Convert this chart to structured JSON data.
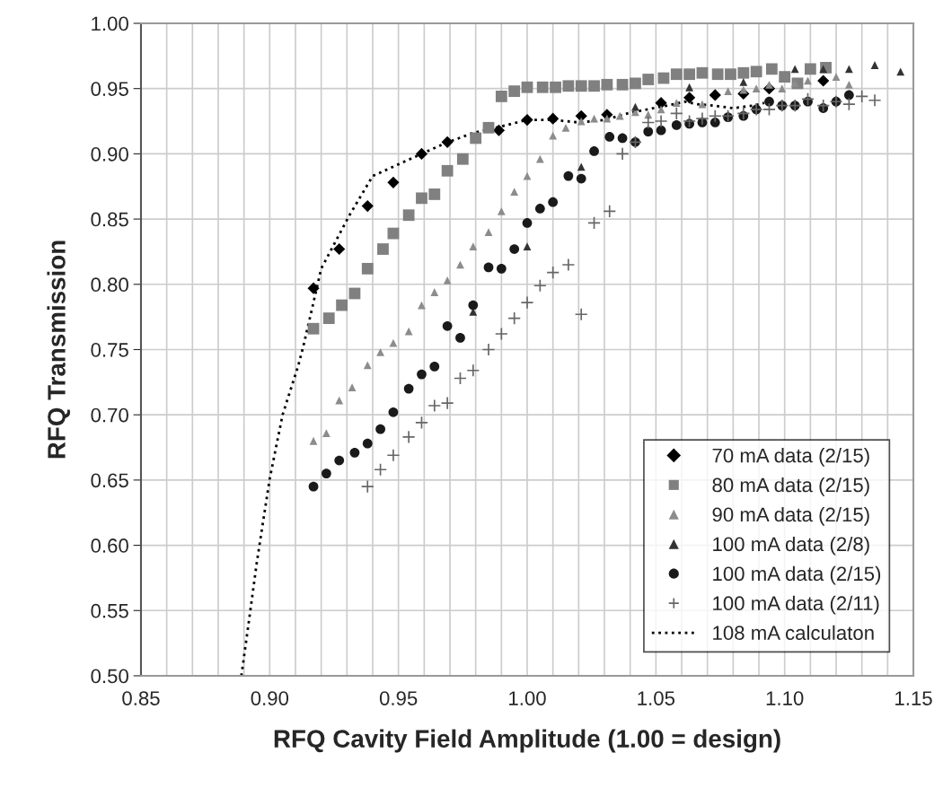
{
  "chart_data": {
    "type": "scatter",
    "xlabel": "RFQ Cavity Field Amplitude (1.00 = design)",
    "ylabel": "RFQ Transmission",
    "xlim": [
      0.85,
      1.15
    ],
    "ylim": [
      0.5,
      1.0
    ],
    "xticks": [
      {
        "value": 0.85,
        "label": "0.85"
      },
      {
        "value": 0.86,
        "label": null
      },
      {
        "value": 0.87,
        "label": null
      },
      {
        "value": 0.88,
        "label": null
      },
      {
        "value": 0.89,
        "label": null
      },
      {
        "value": 0.9,
        "label": "0.90"
      },
      {
        "value": 0.91,
        "label": null
      },
      {
        "value": 0.92,
        "label": null
      },
      {
        "value": 0.93,
        "label": null
      },
      {
        "value": 0.94,
        "label": null
      },
      {
        "value": 0.95,
        "label": "0.95"
      },
      {
        "value": 0.96,
        "label": null
      },
      {
        "value": 0.97,
        "label": null
      },
      {
        "value": 0.98,
        "label": null
      },
      {
        "value": 0.99,
        "label": null
      },
      {
        "value": 1.0,
        "label": "1.00"
      },
      {
        "value": 1.01,
        "label": null
      },
      {
        "value": 1.02,
        "label": null
      },
      {
        "value": 1.03,
        "label": null
      },
      {
        "value": 1.04,
        "label": null
      },
      {
        "value": 1.05,
        "label": "1.05"
      },
      {
        "value": 1.06,
        "label": null
      },
      {
        "value": 1.07,
        "label": null
      },
      {
        "value": 1.08,
        "label": null
      },
      {
        "value": 1.09,
        "label": null
      },
      {
        "value": 1.1,
        "label": "1.10"
      },
      {
        "value": 1.11,
        "label": null
      },
      {
        "value": 1.12,
        "label": null
      },
      {
        "value": 1.13,
        "label": null
      },
      {
        "value": 1.14,
        "label": null
      },
      {
        "value": 1.15,
        "label": "1.15"
      }
    ],
    "yticks": [
      {
        "value": 0.5,
        "label": "0.50"
      },
      {
        "value": 0.55,
        "label": "0.55"
      },
      {
        "value": 0.6,
        "label": "0.60"
      },
      {
        "value": 0.65,
        "label": "0.65"
      },
      {
        "value": 0.7,
        "label": "0.70"
      },
      {
        "value": 0.75,
        "label": "0.75"
      },
      {
        "value": 0.8,
        "label": "0.80"
      },
      {
        "value": 0.85,
        "label": "0.85"
      },
      {
        "value": 0.9,
        "label": "0.90"
      },
      {
        "value": 0.95,
        "label": "0.95"
      },
      {
        "value": 1.0,
        "label": "1.00"
      }
    ],
    "grid": true,
    "legend": "bottom right",
    "series": [
      {
        "name": "70 mA data (2/15)",
        "type": "scatter",
        "marker": "diamond",
        "color": "#000000",
        "x": [
          0.917,
          0.927,
          0.938,
          0.948,
          0.959,
          0.969,
          0.989,
          1.0,
          1.01,
          1.021,
          1.031,
          1.042,
          1.052,
          1.063,
          1.073,
          1.084,
          1.094,
          1.115
        ],
        "values": [
          0.797,
          0.827,
          0.86,
          0.878,
          0.9,
          0.909,
          0.918,
          0.926,
          0.927,
          0.929,
          0.93,
          null,
          0.939,
          0.943,
          0.945,
          0.946,
          0.95,
          0.956
        ]
      },
      {
        "name": "80 mA data (2/15)",
        "type": "scatter",
        "marker": "square",
        "color": "#808080",
        "x": [
          0.917,
          0.923,
          0.928,
          0.933,
          0.938,
          0.944,
          0.948,
          0.954,
          0.959,
          0.964,
          0.969,
          0.975,
          0.98,
          0.985,
          0.99,
          0.995,
          1.0,
          1.006,
          1.011,
          1.016,
          1.021,
          1.026,
          1.031,
          1.037,
          1.042,
          1.047,
          1.053,
          1.058,
          1.063,
          1.068,
          1.074,
          1.079,
          1.084,
          1.089,
          1.095,
          1.1,
          1.105,
          1.11,
          1.116
        ],
        "values": [
          0.766,
          0.774,
          0.784,
          0.793,
          0.812,
          0.827,
          0.839,
          0.853,
          0.866,
          0.869,
          0.887,
          0.896,
          0.912,
          0.92,
          0.944,
          0.948,
          0.951,
          0.951,
          0.951,
          0.952,
          0.952,
          0.952,
          0.953,
          0.953,
          0.954,
          0.957,
          0.958,
          0.961,
          0.961,
          0.962,
          0.961,
          0.961,
          0.962,
          0.963,
          0.965,
          0.959,
          0.954,
          0.965,
          0.966
        ]
      },
      {
        "name": "90 mA data (2/15)",
        "type": "scatter",
        "marker": "triangle",
        "color": "#8c8c8c",
        "x": [
          0.917,
          0.922,
          0.927,
          0.932,
          0.938,
          0.943,
          0.948,
          0.954,
          0.959,
          0.964,
          0.969,
          0.974,
          0.979,
          0.985,
          0.99,
          0.995,
          1.0,
          1.005,
          1.01,
          1.015,
          1.021,
          1.026,
          1.031,
          1.036,
          1.042,
          1.047,
          1.052,
          1.058,
          1.068,
          1.078,
          1.084,
          1.089,
          1.094,
          1.099,
          1.104,
          1.109,
          1.12,
          1.125
        ],
        "values": [
          0.68,
          0.686,
          0.711,
          0.721,
          0.738,
          0.748,
          0.755,
          0.764,
          0.784,
          0.794,
          0.803,
          0.815,
          0.829,
          0.84,
          0.856,
          0.871,
          0.883,
          0.896,
          0.914,
          0.92,
          0.925,
          0.927,
          0.927,
          0.929,
          0.932,
          0.93,
          0.934,
          0.939,
          0.938,
          0.948,
          0.949,
          0.95,
          0.953,
          0.95,
          0.954,
          0.956,
          0.959,
          0.953
        ]
      },
      {
        "name": "100 mA data (2/8)",
        "type": "scatter",
        "marker": "triangle",
        "color": "#333333",
        "x": [
          0.979,
          1.0,
          1.021,
          1.042,
          1.063,
          1.084,
          1.104,
          1.115,
          1.125,
          1.135,
          1.145
        ],
        "values": [
          0.779,
          0.829,
          0.89,
          0.936,
          0.951,
          0.955,
          0.965,
          0.965,
          0.965,
          0.968,
          0.963
        ]
      },
      {
        "name": "100 mA data (2/15)",
        "type": "scatter",
        "marker": "circle",
        "color": "#1a1a1a",
        "x": [
          0.917,
          0.922,
          0.927,
          0.933,
          0.938,
          0.943,
          0.948,
          0.954,
          0.959,
          0.964,
          0.969,
          0.974,
          0.979,
          0.985,
          0.99,
          0.995,
          1.0,
          1.005,
          1.01,
          1.016,
          1.021,
          1.026,
          1.032,
          1.037,
          1.042,
          1.047,
          1.052,
          1.058,
          1.063,
          1.068,
          1.073,
          1.078,
          1.084,
          1.089,
          1.094,
          1.099,
          1.104,
          1.109,
          1.115,
          1.12,
          1.125
        ],
        "values": [
          0.645,
          0.655,
          0.665,
          0.671,
          0.678,
          0.689,
          0.702,
          0.72,
          0.731,
          0.737,
          0.768,
          0.759,
          0.784,
          0.813,
          0.812,
          0.827,
          0.847,
          0.858,
          0.863,
          0.883,
          0.881,
          0.902,
          0.913,
          0.912,
          0.909,
          0.917,
          0.918,
          0.922,
          0.923,
          0.924,
          0.924,
          0.928,
          0.929,
          0.934,
          0.94,
          0.937,
          0.937,
          0.94,
          0.935,
          0.94,
          0.945
        ]
      },
      {
        "name": "100 mA data (2/11)",
        "type": "scatter",
        "marker": "cross",
        "color": "#666666",
        "x": [
          0.938,
          0.943,
          0.948,
          0.954,
          0.959,
          0.964,
          0.969,
          0.974,
          0.979,
          0.985,
          0.99,
          0.995,
          1.0,
          1.005,
          1.01,
          1.016,
          1.021,
          1.026,
          1.032,
          1.037,
          1.042,
          1.047,
          1.052,
          1.058,
          1.063,
          1.068,
          1.073,
          1.078,
          1.084,
          1.089,
          1.094,
          1.099,
          1.104,
          1.109,
          1.115,
          1.12,
          1.125,
          1.13,
          1.135
        ],
        "values": [
          0.645,
          0.658,
          0.669,
          0.683,
          0.694,
          0.707,
          0.709,
          0.728,
          0.734,
          0.75,
          0.762,
          0.774,
          0.786,
          0.799,
          0.809,
          0.815,
          0.777,
          0.847,
          0.856,
          0.9,
          0.909,
          0.924,
          0.925,
          0.931,
          0.925,
          0.927,
          0.929,
          0.929,
          0.931,
          0.934,
          0.934,
          0.937,
          0.937,
          0.942,
          0.937,
          0.94,
          0.938,
          0.944,
          0.941
        ]
      },
      {
        "name": "108 mA calculaton",
        "type": "line",
        "marker": "none",
        "line_style": "dotted",
        "color": "#000000",
        "x": [
          0.889,
          0.892,
          0.895,
          0.9,
          0.905,
          0.911,
          0.913,
          0.915,
          0.92,
          0.931,
          0.94,
          0.959,
          0.968,
          0.979,
          0.99,
          1.0,
          1.01,
          1.02,
          1.03,
          1.039,
          1.049,
          1.057,
          1.061,
          1.066,
          1.072,
          1.08,
          1.088,
          1.092
        ],
        "values": [
          0.5,
          0.543,
          0.587,
          0.651,
          0.7,
          0.737,
          0.752,
          0.769,
          0.812,
          0.853,
          0.883,
          0.9,
          0.908,
          0.916,
          0.921,
          0.926,
          0.926,
          0.924,
          0.926,
          0.931,
          0.935,
          0.938,
          0.94,
          0.938,
          0.937,
          0.935,
          0.937,
          0.939
        ]
      }
    ]
  }
}
